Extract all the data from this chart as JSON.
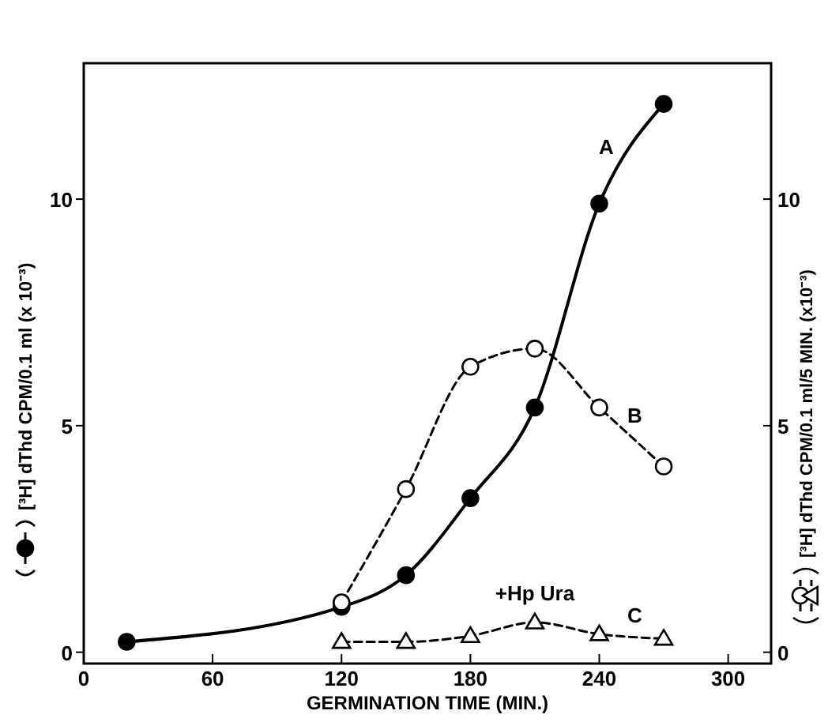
{
  "chart_data": {
    "type": "line",
    "xlabel": "GERMINATION TIME (MIN.)",
    "ylabel": "[³H] dThd CPM/0.1 ml (x 10⁻³)",
    "y2label": "[³H] dThd CPM/0.1 ml/5 MIN. (x10⁻³)",
    "xlim": [
      0,
      320
    ],
    "xticks": [
      0,
      60,
      120,
      180,
      240,
      300
    ],
    "ylim": [
      -0.25,
      13
    ],
    "yticks": [
      0,
      5,
      10
    ],
    "y2lim": [
      -0.25,
      13
    ],
    "y2ticks": [
      0,
      5,
      10
    ],
    "series": [
      {
        "name": "A",
        "color": "#000000",
        "marker": "circle",
        "line_style": "solid",
        "x": [
          20,
          120,
          150,
          180,
          210,
          240,
          270
        ],
        "values": [
          0.23,
          1.0,
          1.7,
          3.4,
          5.4,
          9.9,
          12.1
        ]
      },
      {
        "name": "B",
        "color": "#000000",
        "marker": "circle",
        "line_style": "dashed",
        "axis": "y2",
        "x": [
          120,
          150,
          180,
          210,
          240,
          270
        ],
        "values": [
          1.1,
          3.6,
          6.3,
          6.7,
          5.4,
          4.1
        ]
      },
      {
        "name": "C",
        "color": "#000000",
        "marker": "triangle",
        "line_style": "dashed",
        "axis": "y2",
        "x": [
          120,
          150,
          180,
          210,
          240,
          270
        ],
        "values": [
          0.23,
          0.23,
          0.36,
          0.66,
          0.4,
          0.3
        ]
      }
    ],
    "annotations": [
      "+Hp Ura"
    ]
  }
}
